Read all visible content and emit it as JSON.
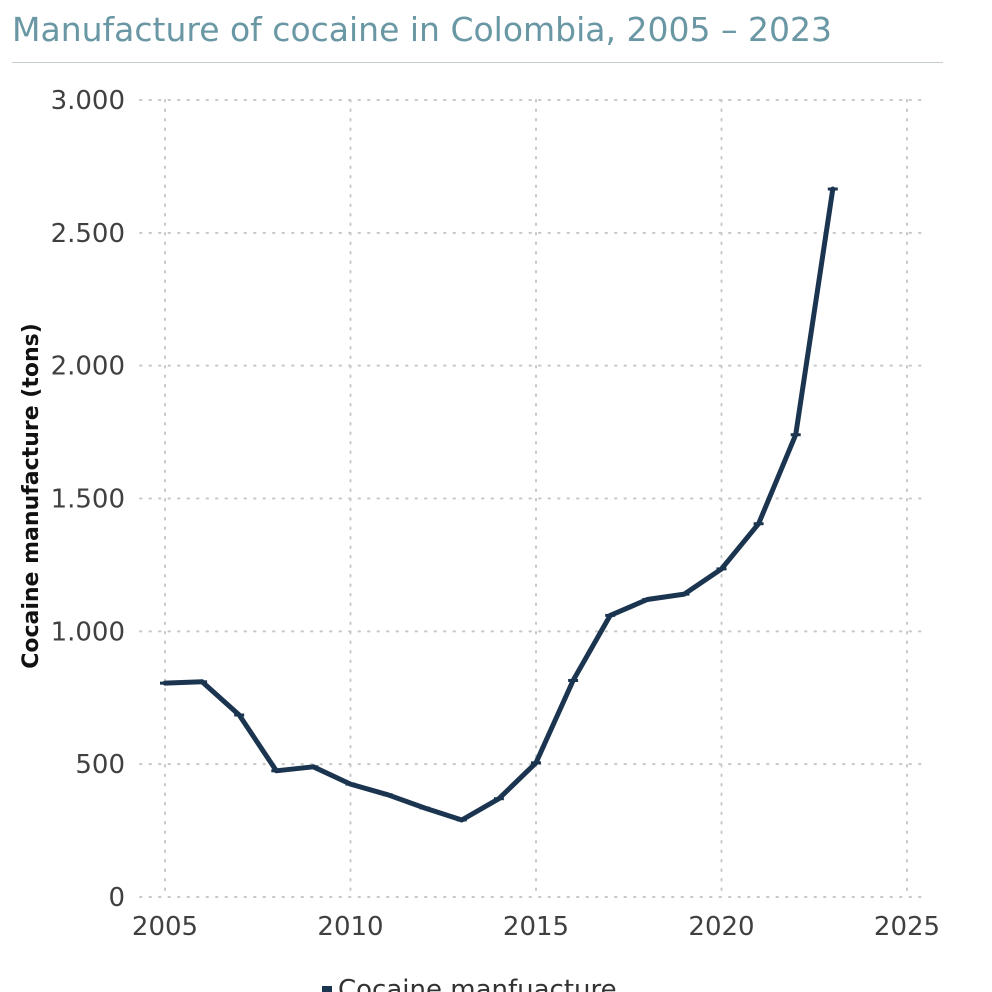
{
  "header": {
    "title": "Manufacture of cocaine in Colombia, 2005 – 2023"
  },
  "colors": {
    "title": "#6a97a4",
    "line": "#1b3550",
    "grid": "#c8c8c8",
    "rule": "#c4ccd0"
  },
  "chart_data": {
    "type": "line",
    "title": "Manufacture of cocaine in Colombia, 2005 – 2023",
    "xlabel": "",
    "ylabel": "Cocaine manufacture (tons)",
    "xlim": [
      2005,
      2025
    ],
    "ylim": [
      0,
      3000
    ],
    "x_ticks": [
      2005,
      2010,
      2015,
      2020,
      2025
    ],
    "x_tick_labels": [
      "2005",
      "2010",
      "2015",
      "2020",
      "2025"
    ],
    "y_ticks": [
      0,
      500,
      1000,
      1500,
      2000,
      2500,
      3000
    ],
    "y_tick_labels": [
      "0",
      "500",
      "1.000",
      "1.500",
      "2.000",
      "2.500",
      "3.000"
    ],
    "grid": true,
    "grid_style": "dotted",
    "legend_position": "bottom",
    "series": [
      {
        "name": "Cocaine manfuacture",
        "x": [
          2005,
          2006,
          2007,
          2008,
          2009,
          2010,
          2011,
          2012,
          2013,
          2014,
          2015,
          2016,
          2017,
          2018,
          2019,
          2020,
          2021,
          2022,
          2023
        ],
        "y": [
          805,
          810,
          685,
          475,
          490,
          425,
          385,
          335,
          290,
          370,
          505,
          815,
          1060,
          1120,
          1140,
          1235,
          1405,
          1740,
          2665
        ]
      }
    ]
  }
}
